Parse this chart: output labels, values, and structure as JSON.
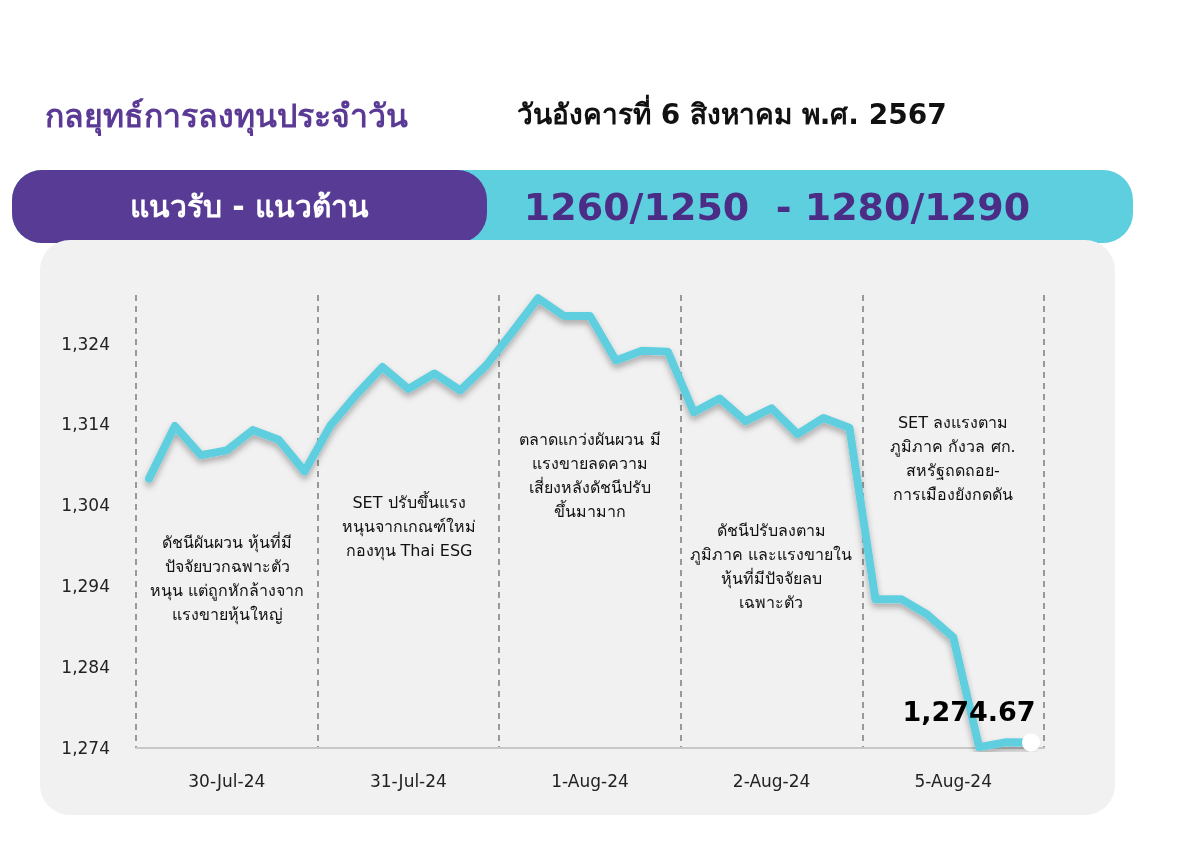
{
  "chart_data": {
    "type": "line",
    "title": "กลยุทธ์การลงทุนประจำวัน",
    "subtitle": "วันอังคารที่ 6 สิงหาคม พ.ศ. 2567",
    "annotations": [
      "แนวรับ - แนวต้าน",
      "1260/1250  - 1280/1290",
      "ดัชนีผันผวน หุ้นที่มี\nปัจจัยบวกฉพาะตัว\nหนุน แต่ถูกหักล้างจาก\nแรงขายหุ้นใหญ่",
      "SET ปรับขึ้นแรง\nหนุนจากเกณฑ์ใหม่\nกองทุน Thai ESG",
      "ตลาดแกว่งผันผวน มี\nแรงขายลดความ\nเสี่ยงหลังดัชนีปรับ\nขึ้นมามาก",
      "ดัชนีปรับลงตาม\nภูมิภาค และแรงขายใน\nหุ้นที่มีปัจจัยลบ\nเฉพาะตัว",
      "SET ลงแรงตาม\nภูมิภาค กังวล ศก.\nสหรัฐถดถอย-\nการเมืองยังกดดัน"
    ],
    "categories": [
      null,
      null,
      null,
      "30-Jul-24",
      null,
      null,
      null,
      null,
      null,
      null,
      "31-Jul-24",
      null,
      null,
      null,
      null,
      null,
      null,
      "1-Aug-24",
      null,
      null,
      null,
      null,
      null,
      null,
      "2-Aug-24",
      null,
      null,
      null,
      null,
      null,
      null,
      "5-Aug-24",
      null,
      null,
      null
    ],
    "series": [
      {
        "color": "#5fcfdf",
        "values": [
          1307.3,
          1313.8,
          1310.2,
          1310.8,
          1313.3,
          1312.1,
          1308.2,
          1313.9,
          1317.7,
          1321.1,
          1318.4,
          1320.3,
          1318.2,
          1321.3,
          1325.4,
          1329.6,
          1327.4,
          1327.4,
          1321.9,
          1323.1,
          1323.0,
          1315.5,
          1317.2,
          1314.4,
          1316.0,
          1312.8,
          1314.8,
          1313.6,
          1292.4,
          1292.4,
          1290.5,
          1287.7,
          1274.1,
          1274.7,
          1274.67
        ],
        "value_labels": [
          null,
          null,
          null,
          null,
          null,
          null,
          null,
          null,
          null,
          null,
          null,
          null,
          null,
          null,
          null,
          null,
          null,
          null,
          null,
          null,
          null,
          null,
          null,
          null,
          null,
          null,
          null,
          null,
          null,
          null,
          null,
          null,
          null,
          null,
          "1,274.67"
        ]
      }
    ],
    "ylim": [
      1274,
      1330
    ],
    "yticks": [
      {
        "value": 1274,
        "label": "1,274"
      },
      {
        "value": 1284,
        "label": "1,284"
      },
      {
        "value": 1294,
        "label": "1,294"
      },
      {
        "value": 1304,
        "label": "1,304"
      },
      {
        "value": 1314,
        "label": "1,314"
      },
      {
        "value": 1324,
        "label": "1,324"
      }
    ],
    "grid": "x",
    "marker": "none",
    "line_style": "solid"
  }
}
